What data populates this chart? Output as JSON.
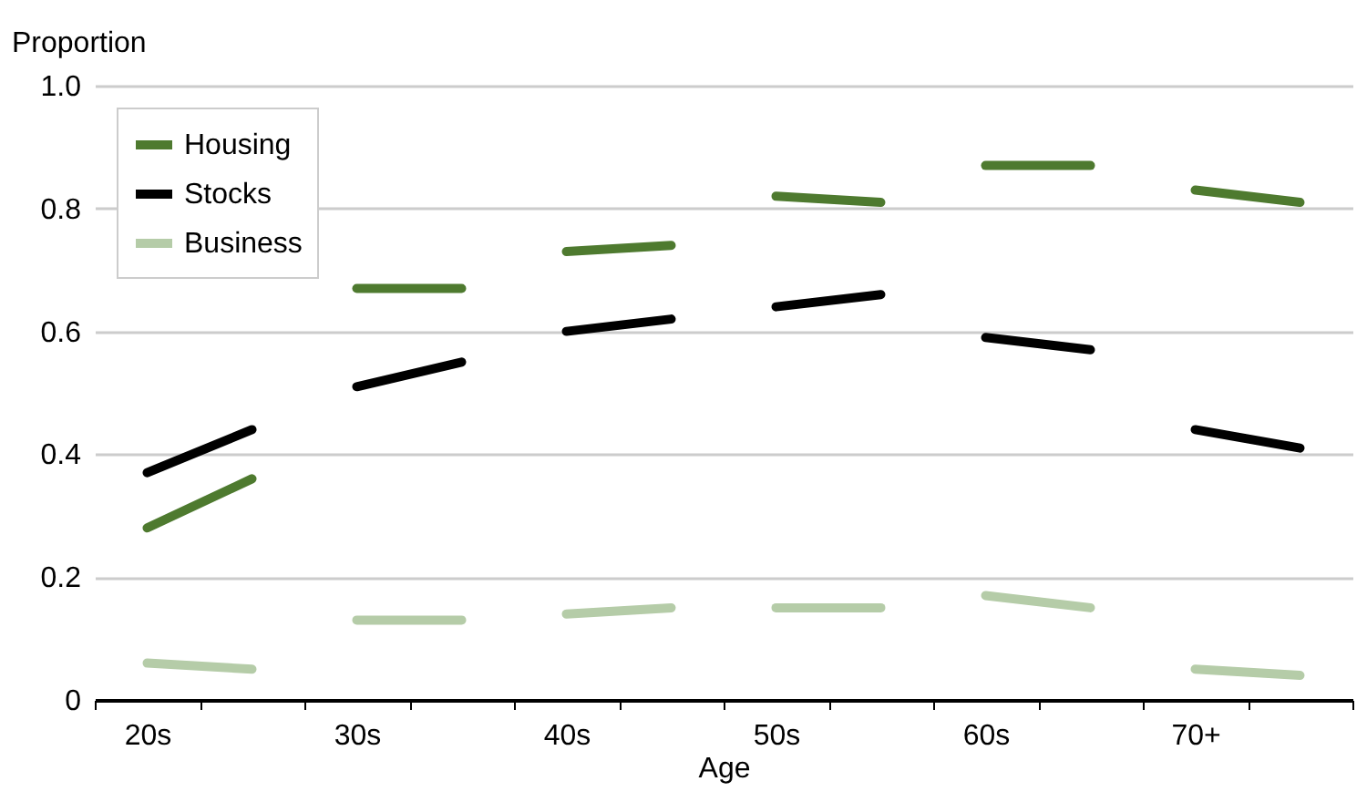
{
  "chart_data": {
    "type": "line",
    "xlabel": "Age",
    "ylabel": "Proportion",
    "categories": [
      "20s",
      null,
      "30s",
      null,
      "40s",
      null,
      "50s",
      null,
      "60s",
      null,
      "70+",
      null
    ],
    "series": [
      {
        "name": "Housing",
        "color": "#4e7a2f",
        "values": [
          0.28,
          0.36,
          0.67,
          0.67,
          0.73,
          0.74,
          0.82,
          0.81,
          0.87,
          0.87,
          0.83,
          0.81
        ]
      },
      {
        "name": "Stocks",
        "color": "#000000",
        "values": [
          0.37,
          0.44,
          0.51,
          0.55,
          0.6,
          0.62,
          0.64,
          0.66,
          0.59,
          0.57,
          0.44,
          0.41
        ]
      },
      {
        "name": "Business",
        "color": "#b5cca8",
        "values": [
          0.06,
          0.05,
          0.13,
          0.13,
          0.14,
          0.15,
          0.15,
          0.15,
          0.17,
          0.15,
          0.05,
          0.04
        ]
      }
    ],
    "ylim": [
      0,
      1
    ],
    "yticks": [
      0,
      0.2,
      0.4,
      0.6,
      0.8,
      {
        "value": 1,
        "label": "1.0"
      }
    ],
    "grid": "y",
    "legend": "top left",
    "line_style": "solid",
    "marker": "none"
  }
}
